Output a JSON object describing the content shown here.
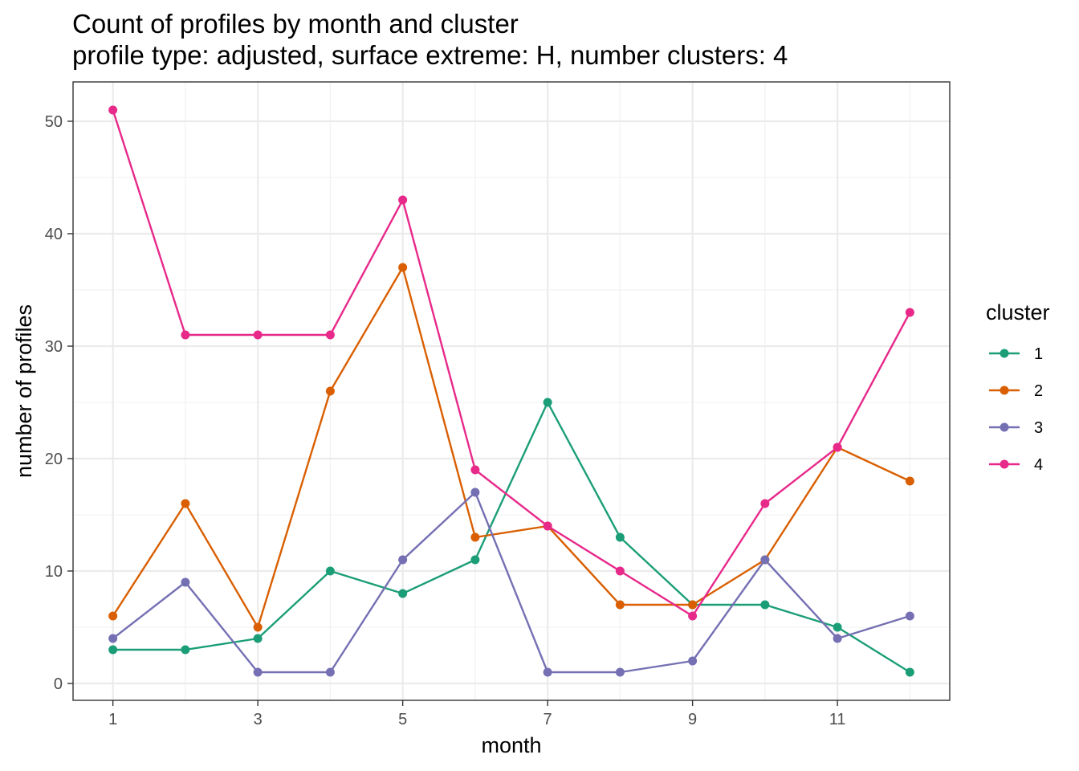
{
  "chart_data": {
    "type": "line",
    "title": "Count of profiles by month and cluster",
    "subtitle": "profile type: adjusted, surface extreme: H, number clusters: 4",
    "xlabel": "month",
    "ylabel": "number of profiles",
    "x": [
      1,
      2,
      3,
      4,
      5,
      6,
      7,
      8,
      9,
      10,
      11,
      12
    ],
    "xticks": [
      1,
      3,
      5,
      7,
      9,
      11
    ],
    "yticks": [
      0,
      10,
      20,
      30,
      40,
      50
    ],
    "xlim": [
      0.45,
      12.55
    ],
    "ylim": [
      -1.5,
      53.5
    ],
    "grid": true,
    "legend": {
      "title": "cluster",
      "position": "right"
    },
    "series": [
      {
        "name": "1",
        "color": "#1B9E77",
        "values": [
          3,
          3,
          4,
          10,
          8,
          11,
          25,
          13,
          7,
          7,
          5,
          1
        ]
      },
      {
        "name": "2",
        "color": "#D95F02",
        "values": [
          6,
          16,
          5,
          26,
          37,
          13,
          14,
          7,
          7,
          11,
          21,
          18
        ]
      },
      {
        "name": "3",
        "color": "#7570B3",
        "values": [
          4,
          9,
          1,
          1,
          11,
          17,
          1,
          1,
          2,
          11,
          4,
          6
        ]
      },
      {
        "name": "4",
        "color": "#E7298A",
        "values": [
          51,
          31,
          31,
          31,
          43,
          19,
          14,
          10,
          6,
          16,
          21,
          33
        ]
      }
    ]
  }
}
